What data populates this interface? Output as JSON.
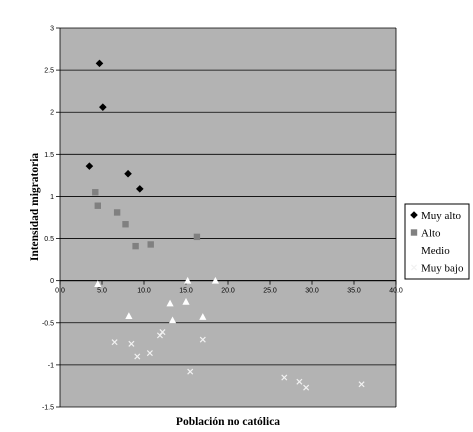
{
  "chart_data": {
    "type": "scatter",
    "xlabel": "Población no católica",
    "ylabel": "Intensidad migratoria",
    "xlim": [
      0,
      40
    ],
    "ylim": [
      -1.5,
      3
    ],
    "x_ticks": [
      "0.0",
      "5.0",
      "10.0",
      "15.0",
      "20.0",
      "25.0",
      "30.0",
      "35.0",
      "40.0"
    ],
    "y_ticks": [
      "3",
      "2.5",
      "2",
      "1.5",
      "1",
      "0.5",
      "0",
      "-0.5",
      "-1",
      "-1.5"
    ],
    "plot_background": "#b3b3b3",
    "grid": "horizontal",
    "legend_placement": "right",
    "series": [
      {
        "name": "Muy alto",
        "marker": "diamond",
        "color": "#000000",
        "points": [
          {
            "x": 4.7,
            "y": 2.58
          },
          {
            "x": 5.1,
            "y": 2.06
          },
          {
            "x": 3.5,
            "y": 1.36
          },
          {
            "x": 8.1,
            "y": 1.27
          },
          {
            "x": 9.5,
            "y": 1.09
          }
        ]
      },
      {
        "name": "Alto",
        "marker": "square",
        "color": "#808080",
        "points": [
          {
            "x": 4.2,
            "y": 1.05
          },
          {
            "x": 4.5,
            "y": 0.89
          },
          {
            "x": 6.8,
            "y": 0.81
          },
          {
            "x": 7.8,
            "y": 0.67
          },
          {
            "x": 9.0,
            "y": 0.41
          },
          {
            "x": 10.8,
            "y": 0.43
          },
          {
            "x": 16.3,
            "y": 0.52
          }
        ]
      },
      {
        "name": "Medio",
        "marker": "triangle",
        "color": "#ffffff",
        "points": [
          {
            "x": 4.5,
            "y": -0.04
          },
          {
            "x": 15.2,
            "y": 0.0
          },
          {
            "x": 18.5,
            "y": 0.0
          },
          {
            "x": 8.2,
            "y": -0.42
          },
          {
            "x": 13.1,
            "y": -0.27
          },
          {
            "x": 15.0,
            "y": -0.25
          },
          {
            "x": 13.4,
            "y": -0.47
          },
          {
            "x": 17.0,
            "y": -0.43
          }
        ]
      },
      {
        "name": "Muy bajo",
        "marker": "x",
        "color": "#f2f2f2",
        "points": [
          {
            "x": 6.5,
            "y": -0.73
          },
          {
            "x": 8.5,
            "y": -0.75
          },
          {
            "x": 9.2,
            "y": -0.9
          },
          {
            "x": 10.7,
            "y": -0.86
          },
          {
            "x": 11.9,
            "y": -0.65
          },
          {
            "x": 12.2,
            "y": -0.61
          },
          {
            "x": 17.0,
            "y": -0.7
          },
          {
            "x": 15.5,
            "y": -1.08
          },
          {
            "x": 26.7,
            "y": -1.15
          },
          {
            "x": 28.5,
            "y": -1.2
          },
          {
            "x": 29.3,
            "y": -1.27
          },
          {
            "x": 35.9,
            "y": -1.23
          }
        ]
      }
    ]
  }
}
